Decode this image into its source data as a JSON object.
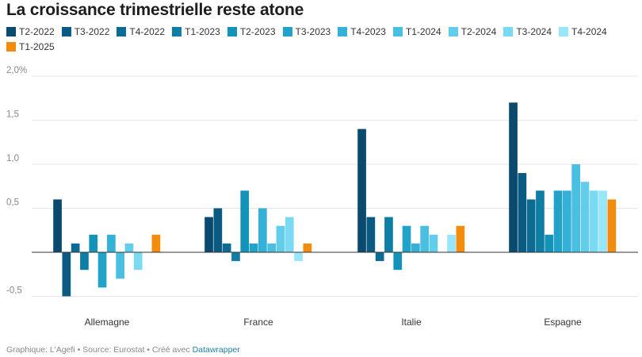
{
  "chart_data": {
    "type": "bar",
    "title": "La croissance trimestrielle reste atone",
    "categories": [
      "Allemagne",
      "France",
      "Italie",
      "Espagne"
    ],
    "series": [
      {
        "name": "T2-2022",
        "color": "#0a4a6e",
        "values": [
          0.6,
          0.4,
          1.4,
          1.7
        ]
      },
      {
        "name": "T3-2022",
        "color": "#0b5a82",
        "values": [
          -0.5,
          0.5,
          0.4,
          0.9
        ]
      },
      {
        "name": "T4-2022",
        "color": "#0c6b93",
        "values": [
          0.1,
          0.1,
          -0.1,
          0.6
        ]
      },
      {
        "name": "T1-2023",
        "color": "#0e7ea5",
        "values": [
          -0.2,
          -0.1,
          0.4,
          0.7
        ]
      },
      {
        "name": "T2-2023",
        "color": "#1393b8",
        "values": [
          0.2,
          0.7,
          -0.2,
          0.2
        ]
      },
      {
        "name": "T3-2023",
        "color": "#21a2c8",
        "values": [
          -0.4,
          0.1,
          0.3,
          0.7
        ]
      },
      {
        "name": "T4-2023",
        "color": "#35b0d6",
        "values": [
          0.2,
          0.5,
          0.1,
          0.7
        ]
      },
      {
        "name": "T1-2024",
        "color": "#4bbfe2",
        "values": [
          -0.3,
          0.1,
          0.3,
          1.0
        ]
      },
      {
        "name": "T2-2024",
        "color": "#62cdeb",
        "values": [
          0.1,
          0.3,
          0.2,
          0.8
        ]
      },
      {
        "name": "T3-2024",
        "color": "#7bdaf3",
        "values": [
          -0.2,
          0.4,
          0.0,
          0.7
        ]
      },
      {
        "name": "T4-2024",
        "color": "#97e6f9",
        "values": [
          0.0,
          -0.1,
          0.2,
          0.7
        ]
      },
      {
        "name": "T1-2025",
        "color": "#f28c0f",
        "values": [
          0.2,
          0.1,
          0.3,
          0.6
        ]
      }
    ],
    "ylim": [
      -0.6,
      2.0
    ],
    "yticks": [
      -0.5,
      0.5,
      1.0,
      1.5,
      2.0
    ],
    "ytick_labels": [
      "-0,5",
      "0,5",
      "1,0",
      "1,5",
      "2,0%"
    ],
    "grid": true,
    "legend": "top"
  },
  "footer": {
    "text": "Graphique: L'Agefi • Source: Eurostat • Créé avec ",
    "link": "Datawrapper"
  },
  "colors": {
    "zero_line": "#333333",
    "grid": "#e6e6e6",
    "tick_text": "#888888"
  }
}
